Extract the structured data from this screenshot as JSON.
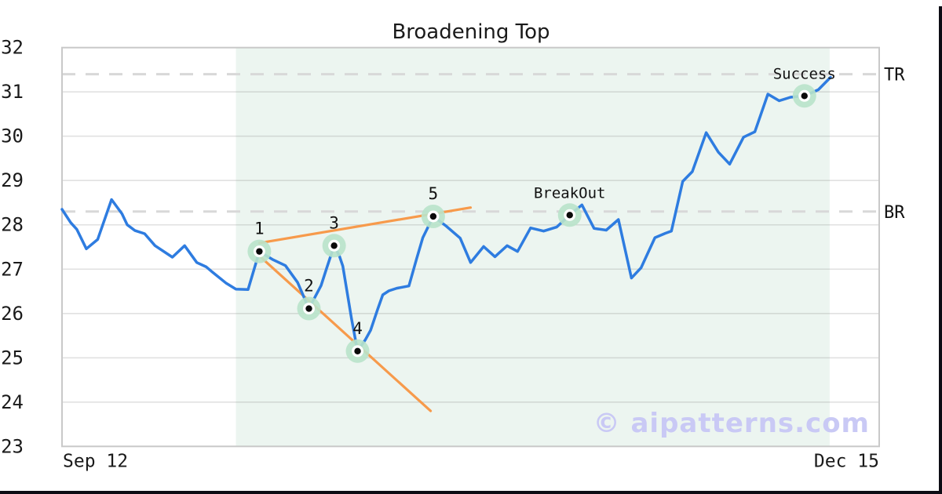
{
  "title": "Broadening Top",
  "watermark": "© aipatterns.com",
  "colors": {
    "price_line": "#2e7ce0",
    "trendline": "#f79a4b",
    "pattern_shade": "#ecf5f0",
    "marker_halo": "#b9e3ca",
    "marker_ring": "#ffffff",
    "marker_dot": "#0a0a0a",
    "level_dash": "#d8d8d8",
    "grid": "#787878",
    "plot_border": "#c9c9c9",
    "text": "#1a1a1a",
    "watermark": "#c9c9f5",
    "frame": "#0c0c14"
  },
  "chart_data": {
    "type": "line",
    "title": "Broadening Top",
    "xlabel": "",
    "ylabel": "",
    "ylim": [
      23,
      32
    ],
    "yticks": [
      23,
      24,
      25,
      26,
      27,
      28,
      29,
      30,
      31,
      32
    ],
    "x_range_days": [
      0,
      94
    ],
    "xtick_labels": [
      {
        "label": "Sep 12",
        "x_day": 0,
        "align": "start"
      },
      {
        "label": "Dec 15",
        "x_day": 94,
        "align": "end"
      }
    ],
    "grid": "horizontal-only",
    "pattern_window_days": [
      20,
      88.3
    ],
    "levels": [
      {
        "label": "TR",
        "value": 31.4
      },
      {
        "label": "BR",
        "value": 28.3
      }
    ],
    "series": [
      {
        "name": "price",
        "x_days": [
          0,
          1,
          1.7,
          2.8,
          4.1,
          5.7,
          6.9,
          7.5,
          8.4,
          9.5,
          10.7,
          12.7,
          14.1,
          15.5,
          16.6,
          17.2,
          18.9,
          20,
          21.4,
          22.7,
          24.2,
          25.7,
          27.1,
          28.4,
          29.8,
          30.4,
          31.3,
          31.9,
          32.3,
          32.8,
          33.3,
          34,
          34.9,
          35.5,
          36.3,
          36.9,
          37.6,
          38.5,
          39.9,
          40.8,
          41.5,
          42.7,
          44.2,
          45.8,
          47,
          48.5,
          49.8,
          51.2,
          52.4,
          53.9,
          55.4,
          56.9,
          58.4,
          59.8,
          61.2,
          62.6,
          64,
          65.5,
          66.6,
          68.2,
          69.4,
          70.1,
          71.4,
          72.5,
          74.1,
          75.5,
          76.8,
          78.4,
          79.7,
          81.2,
          82.5,
          83.8,
          85.4,
          87,
          88.4
        ],
        "values": [
          28.35,
          28.05,
          27.9,
          27.46,
          27.67,
          28.57,
          28.25,
          28.0,
          27.87,
          27.8,
          27.53,
          27.27,
          27.53,
          27.15,
          27.05,
          26.95,
          26.68,
          26.55,
          26.54,
          27.4,
          27.22,
          27.08,
          26.7,
          26.11,
          26.63,
          27.0,
          27.53,
          27.3,
          27.07,
          26.48,
          25.88,
          25.15,
          25.41,
          25.62,
          26.09,
          26.42,
          26.51,
          26.57,
          26.62,
          27.24,
          27.71,
          28.19,
          27.97,
          27.7,
          27.15,
          27.51,
          27.28,
          27.53,
          27.4,
          27.93,
          27.86,
          27.95,
          28.22,
          28.45,
          27.92,
          27.88,
          28.12,
          26.8,
          27.03,
          27.71,
          27.81,
          27.86,
          28.98,
          29.2,
          30.08,
          29.64,
          29.37,
          29.98,
          30.1,
          30.95,
          30.8,
          30.88,
          30.91,
          31.05,
          31.33
        ]
      }
    ],
    "trendlines": [
      {
        "name": "upper",
        "x_days": [
          22.7,
          47.0
        ],
        "values": [
          27.59,
          28.39
        ]
      },
      {
        "name": "lower",
        "x_days": [
          22.7,
          42.4
        ],
        "values": [
          27.3,
          23.8
        ]
      }
    ],
    "markers": [
      {
        "label": "1",
        "x_day": 22.7,
        "value": 27.4
      },
      {
        "label": "2",
        "x_day": 28.4,
        "value": 26.11
      },
      {
        "label": "3",
        "x_day": 31.3,
        "value": 27.53
      },
      {
        "label": "4",
        "x_day": 34,
        "value": 25.15
      },
      {
        "label": "5",
        "x_day": 42.7,
        "value": 28.19
      },
      {
        "label": "BreakOut",
        "x_day": 58.4,
        "value": 28.22
      },
      {
        "label": "Success",
        "x_day": 85.4,
        "value": 30.91
      }
    ],
    "legend": "none"
  }
}
